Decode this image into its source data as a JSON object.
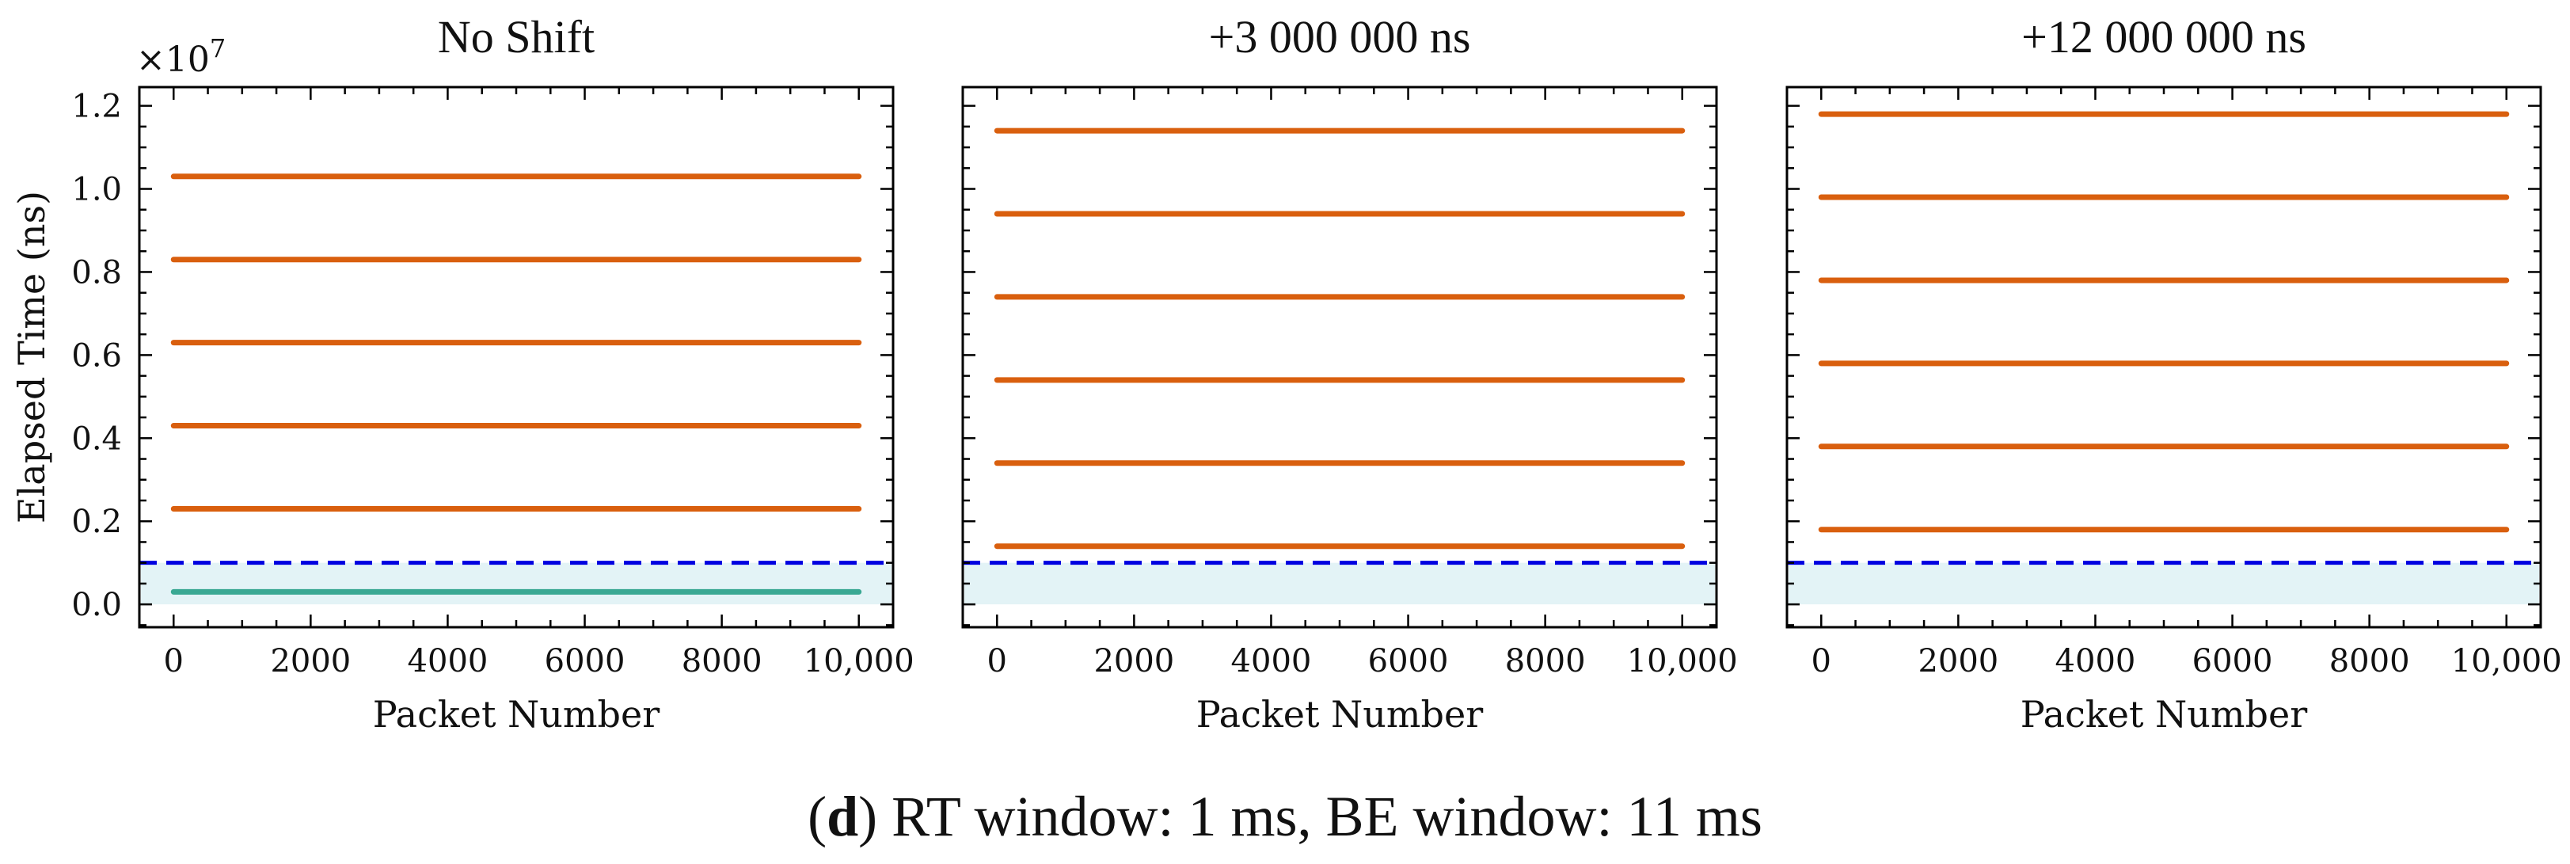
{
  "figure": {
    "caption_letter": "d",
    "caption_open": "(",
    "caption_close": ")",
    "caption_text": " RT window: 1 ms, BE window: 11 ms",
    "y_axis_multiplier": "×10",
    "y_axis_exponent": "7",
    "colors": {
      "rt_series": "#3aa893",
      "be_series": "#d95f0e",
      "threshold_line": "#0000e0",
      "rt_window_shade": "#e3f3f6"
    }
  },
  "chart_data": [
    {
      "type": "line",
      "title": "No Shift",
      "xlabel": "Packet Number",
      "ylabel": "Elapsed Time (ns)",
      "x_ticks": [
        "0",
        "2000",
        "4000",
        "6000",
        "8000",
        "10,000"
      ],
      "y_ticks": [
        "0.0",
        "0.2",
        "0.4",
        "0.6",
        "0.8",
        "1.0",
        "1.2"
      ],
      "xlim": [
        -500,
        10500
      ],
      "ylim": [
        -550000,
        12450000
      ],
      "x_range": [
        0,
        10000
      ],
      "threshold": 1000000,
      "shaded_band": [
        0,
        1000000
      ],
      "series": [
        {
          "kind": "rt",
          "values": [
            300000
          ]
        },
        {
          "kind": "be",
          "values": [
            2300000,
            4300000,
            6300000,
            8300000,
            10300000
          ]
        }
      ]
    },
    {
      "type": "line",
      "title": "+3 000 000 ns",
      "xlabel": "Packet Number",
      "ylabel": "",
      "x_ticks": [
        "0",
        "2000",
        "4000",
        "6000",
        "8000",
        "10,000"
      ],
      "y_ticks": [],
      "xlim": [
        -500,
        10500
      ],
      "ylim": [
        -550000,
        12450000
      ],
      "x_range": [
        0,
        10000
      ],
      "threshold": 1000000,
      "shaded_band": [
        0,
        1000000
      ],
      "series": [
        {
          "kind": "be",
          "values": [
            1400000,
            3400000,
            5400000,
            7400000,
            9400000,
            11400000
          ]
        }
      ]
    },
    {
      "type": "line",
      "title": "+12 000 000 ns",
      "xlabel": "Packet Number",
      "ylabel": "",
      "x_ticks": [
        "0",
        "2000",
        "4000",
        "6000",
        "8000",
        "10,000"
      ],
      "y_ticks": [],
      "xlim": [
        -500,
        10500
      ],
      "ylim": [
        -550000,
        12450000
      ],
      "x_range": [
        0,
        10000
      ],
      "threshold": 1000000,
      "shaded_band": [
        0,
        1000000
      ],
      "series": [
        {
          "kind": "be",
          "values": [
            1800000,
            3800000,
            5800000,
            7800000,
            9800000,
            11800000
          ]
        }
      ]
    }
  ]
}
